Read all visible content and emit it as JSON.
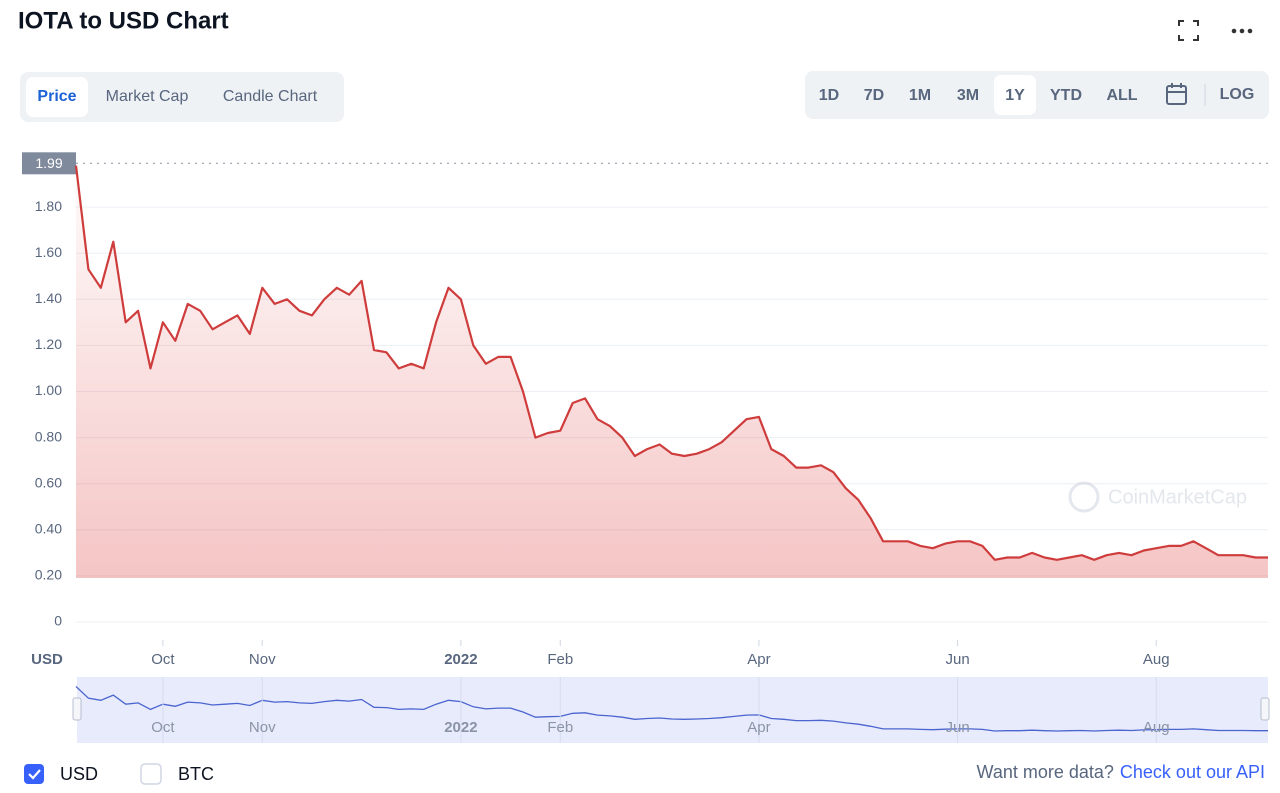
{
  "chart_data": {
    "type": "area",
    "title": "IOTA to USD Chart",
    "y_label": "USD",
    "categories": [
      null,
      null,
      null,
      null,
      null,
      null,
      null,
      "Oct",
      null,
      null,
      null,
      null,
      null,
      null,
      null,
      "Nov",
      null,
      null,
      null,
      null,
      null,
      null,
      null,
      null,
      null,
      null,
      null,
      null,
      null,
      null,
      null,
      "2022",
      null,
      null,
      null,
      null,
      null,
      null,
      null,
      "Feb",
      null,
      null,
      null,
      null,
      null,
      null,
      null,
      null,
      null,
      null,
      null,
      null,
      null,
      null,
      null,
      "Apr",
      null,
      null,
      null,
      null,
      null,
      null,
      null,
      null,
      null,
      null,
      null,
      null,
      null,
      null,
      null,
      "Jun",
      null,
      null,
      null,
      null,
      null,
      null,
      null,
      null,
      null,
      null,
      null,
      null,
      null,
      null,
      null,
      "Aug",
      null,
      null,
      null,
      null,
      null,
      null,
      null,
      null,
      null
    ],
    "series": [
      {
        "name": "USD",
        "color": "#cf3c3c",
        "values": [
          1.98,
          1.53,
          1.45,
          1.65,
          1.3,
          1.35,
          1.1,
          1.3,
          1.22,
          1.38,
          1.35,
          1.27,
          1.3,
          1.33,
          1.25,
          1.45,
          1.38,
          1.4,
          1.35,
          1.33,
          1.4,
          1.45,
          1.42,
          1.48,
          1.18,
          1.17,
          1.1,
          1.12,
          1.1,
          1.3,
          1.45,
          1.4,
          1.2,
          1.12,
          1.15,
          1.15,
          1.0,
          0.8,
          0.82,
          0.83,
          0.95,
          0.97,
          0.88,
          0.85,
          0.8,
          0.72,
          0.75,
          0.77,
          0.73,
          0.72,
          0.73,
          0.75,
          0.78,
          0.83,
          0.88,
          0.89,
          0.75,
          0.72,
          0.67,
          0.67,
          0.68,
          0.65,
          0.58,
          0.53,
          0.45,
          0.35,
          0.35,
          0.35,
          0.33,
          0.32,
          0.34,
          0.35,
          0.35,
          0.33,
          0.27,
          0.28,
          0.28,
          0.3,
          0.28,
          0.27,
          0.28,
          0.29,
          0.27,
          0.29,
          0.3,
          0.29,
          0.31,
          0.32,
          0.33,
          0.33,
          0.35,
          0.32,
          0.29,
          0.29,
          0.29,
          0.28,
          0.28
        ]
      }
    ],
    "ylim": [
      0,
      2
    ],
    "yticks": [
      0,
      {
        "value": 0.2,
        "label": "0.20"
      },
      {
        "value": 0.4,
        "label": "0.40"
      },
      {
        "value": 0.6,
        "label": "0.60"
      },
      {
        "value": 0.8,
        "label": "0.80"
      },
      {
        "value": 1.0,
        "label": "1.00"
      },
      {
        "value": 1.2,
        "label": "1.20"
      },
      {
        "value": 1.4,
        "label": "1.40"
      },
      {
        "value": 1.6,
        "label": "1.60"
      },
      {
        "value": 1.8,
        "label": "1.80"
      }
    ],
    "highlight": 1.99,
    "grid": true,
    "watermark": "CoinMarketCap",
    "compare": "BTC"
  },
  "tabs": [
    {
      "label": "Price",
      "active": true
    },
    {
      "label": "Market Cap",
      "active": false
    },
    {
      "label": "Candle Chart",
      "active": false
    }
  ],
  "ranges": [
    {
      "label": "1D",
      "active": false
    },
    {
      "label": "7D",
      "active": false
    },
    {
      "label": "1M",
      "active": false
    },
    {
      "label": "3M",
      "active": false
    },
    {
      "label": "1Y",
      "active": true
    },
    {
      "label": "YTD",
      "active": false
    },
    {
      "label": "ALL",
      "active": false
    }
  ],
  "log_button": "LOG",
  "footer": {
    "prompt": "Want more data?",
    "link": "Check out our API"
  }
}
